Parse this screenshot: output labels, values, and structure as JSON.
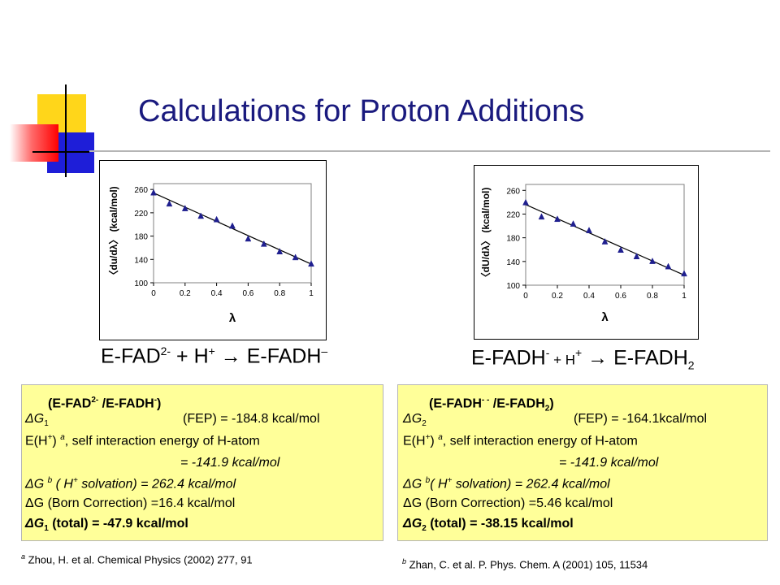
{
  "title": "Calculations for Proton Additions",
  "chart_data": [
    {
      "type": "scatter",
      "ylabel_parts": [
        "〈du/dλ〉",
        "(kcal/mol)"
      ],
      "xlabel": "λ",
      "xlim": [
        0,
        1
      ],
      "ylim": [
        100,
        270
      ],
      "xticks": [
        "0",
        "0.2",
        "0.4",
        "0.6",
        "0.8",
        "1"
      ],
      "yticks": [
        "100",
        "140",
        "180",
        "220",
        "260"
      ],
      "x": [
        0,
        0.1,
        0.2,
        0.3,
        0.4,
        0.5,
        0.6,
        0.7,
        0.8,
        0.9,
        1.0
      ],
      "y": [
        255,
        236,
        228,
        215,
        209,
        198,
        176,
        167,
        154,
        144,
        133
      ],
      "trend": [
        [
          0,
          254
        ],
        [
          1,
          132
        ]
      ],
      "grid": false,
      "marker_color": "#1f1f8f"
    },
    {
      "type": "scatter",
      "ylabel_parts": [
        "〈dU/dλ〉",
        "(kcal/mol)"
      ],
      "xlabel": "λ",
      "xlim": [
        0,
        1
      ],
      "ylim": [
        100,
        270
      ],
      "xticks": [
        "0",
        "0.2",
        "0.4",
        "0.6",
        "0.8",
        "1"
      ],
      "yticks": [
        "100",
        "140",
        "180",
        "220",
        "260"
      ],
      "x": [
        0,
        0.1,
        0.2,
        0.3,
        0.4,
        0.5,
        0.6,
        0.7,
        0.8,
        0.9,
        1.0
      ],
      "y": [
        240,
        216,
        212,
        204,
        193,
        174,
        160,
        149,
        141,
        132,
        120
      ],
      "trend": [
        [
          0,
          236
        ],
        [
          1,
          117
        ]
      ],
      "grid": false,
      "marker_color": "#1f1f8f"
    }
  ],
  "eq_left": {
    "a": "E-FAD",
    "a_sup": "2-",
    "b": " + H",
    "b_sup": "+",
    "arrow": " → ",
    "c": "E-FADH",
    "c_sup": "–"
  },
  "eq_right": {
    "a": "E-FADH",
    "a_sup": "-",
    "b": " + H",
    "b_sup": "+",
    "arrow": " → ",
    "c": "E-FADH",
    "c_sub": "2"
  },
  "box_left": {
    "header_a": "(E-FAD",
    "header_a_sup": "2-",
    "header_b": " /E-FADH",
    "header_b_sup": "-",
    "header_c": ")",
    "dg_a": "ΔG",
    "dg_sub": "1",
    "dg_b": "(FEP) = -184.8 kcal/mol",
    "eh_a": "E(H",
    "eh_sup": "+",
    "eh_b": ") ",
    "eh_sup2": "a",
    "eh_c": ", self interaction energy of H-atom",
    "eh_value": "= -141.9 kcal/mol",
    "solv_a": "ΔG ",
    "solv_sup": "b",
    "solv_b": " ( H",
    "solv_sup2": "+",
    "solv_c": " solvation) = 262.4 kcal/mol",
    "born": "ΔG (Born Correction) =16.4 kcal/mol",
    "total_a": "ΔG",
    "total_sub": "1",
    "total_b": " (total) = -47.9 kcal/mol"
  },
  "box_right": {
    "header_a": "(E-FADH",
    "header_a_sup": "- -",
    "header_b": " /E-FADH",
    "header_b_sub": "2",
    "header_c": ")",
    "dg_a": "ΔG",
    "dg_sub": "2",
    "dg_b": "(FEP) = -164.1kcal/mol",
    "eh_a": "E(H",
    "eh_sup": "+",
    "eh_b": ") ",
    "eh_sup2": "a",
    "eh_c": ", self interaction energy of H-atom",
    "eh_value": "= -141.9 kcal/mol",
    "solv_a": "ΔG ",
    "solv_sup": "b",
    "solv_b": "( H",
    "solv_sup2": "+",
    "solv_c": " solvation) = 262.4 kcal/mol",
    "born": "ΔG (Born Correction) =5.46 kcal/mol",
    "total_a": "ΔG",
    "total_sub": "2",
    "total_b": " (total) = -38.15 kcal/mol"
  },
  "ref_left": {
    "sup": "a",
    "text": " Zhou, H. et al. Chemical Physics (2002) 277, 91"
  },
  "ref_right": {
    "sup": "b",
    "text": " Zhan, C. et al. P. Phys. Chem. A (2001) 105, 11534"
  }
}
